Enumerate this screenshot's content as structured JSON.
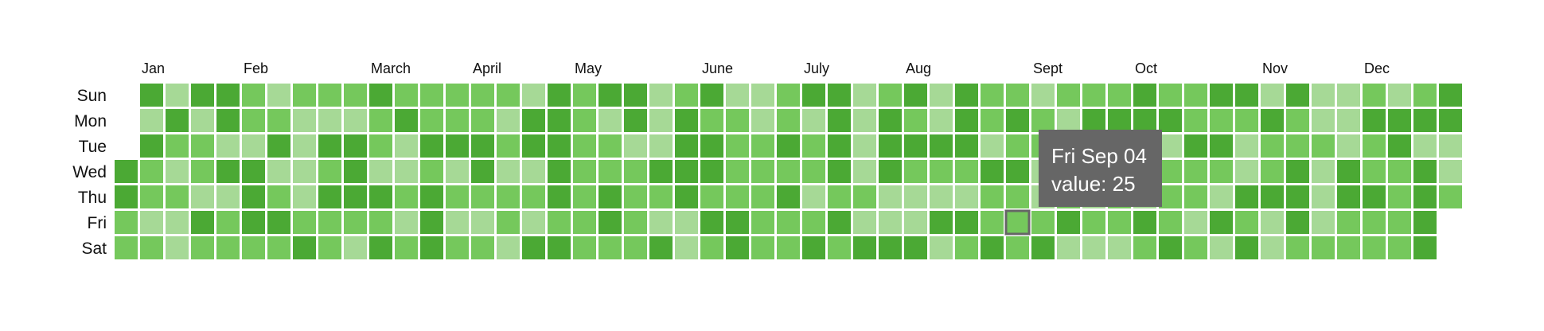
{
  "chart_data": {
    "type": "heatmap",
    "title": "",
    "months": [
      "Jan",
      "Feb",
      "March",
      "April",
      "May",
      "June",
      "July",
      "Aug",
      "Sept",
      "Oct",
      "Nov",
      "Dec"
    ],
    "weekdays": [
      "Sun",
      "Mon",
      "Tue",
      "Wed",
      "Thu",
      "Fri",
      "Sat"
    ],
    "first_day_weekday": 3,
    "total_days": 366,
    "levels": [
      1,
      2,
      3
    ],
    "level_colors": {
      "1": "#a6d996",
      "2": "#75c85c",
      "3": "#4ba934"
    },
    "values": [
      3,
      3,
      2,
      2,
      3,
      1,
      3,
      2,
      2,
      1,
      2,
      1,
      3,
      2,
      1,
      2,
      1,
      1,
      3,
      1,
      2,
      2,
      1,
      3,
      2,
      3,
      3,
      1,
      3,
      1,
      2,
      2,
      2,
      2,
      1,
      3,
      3,
      3,
      2,
      1,
      2,
      3,
      1,
      2,
      3,
      2,
      2,
      1,
      1,
      1,
      1,
      2,
      3,
      2,
      1,
      3,
      2,
      3,
      2,
      2,
      2,
      1,
      3,
      3,
      3,
      2,
      1,
      3,
      2,
      2,
      1,
      3,
      2,
      3,
      2,
      3,
      1,
      1,
      2,
      1,
      2,
      2,
      2,
      3,
      2,
      3,
      3,
      3,
      2,
      2,
      3,
      1,
      2,
      1,
      2,
      2,
      2,
      3,
      3,
      2,
      1,
      2,
      2,
      1,
      2,
      1,
      2,
      2,
      1,
      1,
      3,
      3,
      1,
      2,
      1,
      3,
      3,
      3,
      3,
      3,
      3,
      2,
      3,
      2,
      2,
      2,
      2,
      2,
      2,
      2,
      3,
      1,
      2,
      2,
      3,
      3,
      2,
      3,
      3,
      1,
      2,
      2,
      2,
      2,
      1,
      1,
      1,
      3,
      2,
      1,
      3,
      2,
      3,
      3,
      3,
      3,
      1,
      1,
      3,
      2,
      3,
      3,
      2,
      3,
      2,
      1,
      2,
      2,
      2,
      2,
      3,
      3,
      1,
      1,
      2,
      2,
      2,
      2,
      2,
      2,
      2,
      3,
      2,
      3,
      2,
      2,
      3,
      1,
      2,
      2,
      1,
      2,
      3,
      3,
      3,
      3,
      3,
      2,
      3,
      2,
      1,
      1,
      1,
      1,
      2,
      1,
      3,
      2,
      3,
      3,
      3,
      1,
      1,
      3,
      3,
      2,
      3,
      2,
      1,
      1,
      3,
      1,
      1,
      3,
      2,
      1,
      3,
      1,
      3,
      3,
      3,
      2,
      1,
      3,
      2,
      2,
      2,
      1,
      3,
      2,
      2,
      3,
      2,
      3,
      2,
      3,
      2,
      2,
      2,
      1,
      2,
      2,
      1,
      1,
      2,
      3,
      2,
      1,
      3,
      3,
      2,
      3,
      1,
      2,
      3,
      2,
      3,
      1,
      2,
      1,
      2,
      3,
      3,
      2,
      2,
      2,
      1,
      3,
      3,
      3,
      3,
      1,
      3,
      2,
      2,
      3,
      1,
      2,
      2,
      2,
      3,
      2,
      2,
      3,
      2,
      2,
      1,
      2,
      3,
      2,
      3,
      2,
      1,
      3,
      1,
      3,
      2,
      1,
      1,
      3,
      2,
      3,
      1,
      3,
      2,
      2,
      3,
      1,
      1,
      3,
      2,
      2,
      3,
      3,
      3,
      2,
      1,
      1,
      2,
      1,
      1,
      1,
      2,
      1,
      1,
      1,
      3,
      3,
      2,
      2,
      2,
      3,
      2,
      2,
      3,
      2,
      2,
      1,
      3,
      3,
      2,
      2,
      2,
      2,
      2,
      3,
      1,
      3,
      3,
      3,
      3,
      3,
      3,
      1,
      1,
      2
    ],
    "highlighted": {
      "date": "Fri Sep 04",
      "value": 25,
      "day_index": 247
    }
  },
  "tooltip": {
    "date": "Fri Sep 04",
    "value_label": "value:",
    "value": "25"
  }
}
